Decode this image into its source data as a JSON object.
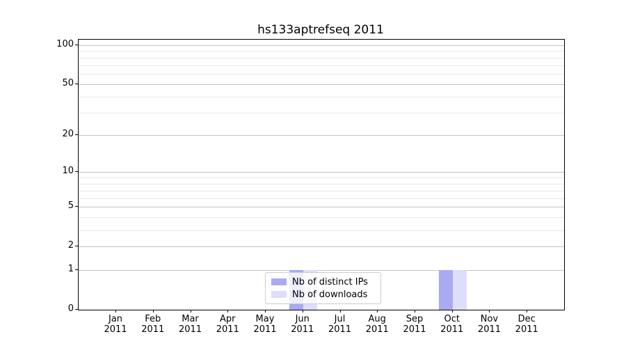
{
  "title": "hs133aptrefseq 2011",
  "chart_data": {
    "type": "bar",
    "title": "hs133aptrefseq 2011",
    "categories": [
      "Jan 2011",
      "Feb 2011",
      "Mar 2011",
      "Apr 2011",
      "May 2011",
      "Jun 2011",
      "Jul 2011",
      "Aug 2011",
      "Sep 2011",
      "Oct 2011",
      "Nov 2011",
      "Dec 2011"
    ],
    "x_tick_months": [
      "Jan",
      "Feb",
      "Mar",
      "Apr",
      "May",
      "Jun",
      "Jul",
      "Aug",
      "Sep",
      "Oct",
      "Nov",
      "Dec"
    ],
    "x_tick_year": "2011",
    "series": [
      {
        "name": "Nb of distinct IPs",
        "color": "#aaaaf2",
        "values": [
          0,
          0,
          0,
          0,
          0,
          1,
          0,
          0,
          0,
          1,
          0,
          0
        ]
      },
      {
        "name": "Nb of downloads",
        "color": "#dedef8",
        "values": [
          0,
          0,
          0,
          0,
          0,
          1,
          0,
          0,
          0,
          1,
          0,
          0
        ]
      }
    ],
    "xlabel": "",
    "ylabel": "",
    "yticks": [
      0,
      1,
      2,
      5,
      10,
      20,
      50,
      100
    ],
    "ytick_labels": [
      "0",
      "1",
      "2",
      "5",
      "10",
      "20",
      "50",
      "100"
    ],
    "minor_yticks": [
      3,
      4,
      6,
      7,
      8,
      9,
      30,
      40,
      60,
      70,
      80,
      90
    ],
    "ylim": [
      0,
      110
    ],
    "yscale": "log-like (symlog)",
    "grid": "horizontal",
    "legend_position": "lower center"
  },
  "colors": {
    "bar_distinct_ips": "#aaaaf2",
    "bar_downloads": "#dedef8",
    "grid_major": "#c3c3c3",
    "grid_minor": "#e8e8e8",
    "spine": "#000000",
    "text": "#000000",
    "legend_border": "#cccccc"
  }
}
